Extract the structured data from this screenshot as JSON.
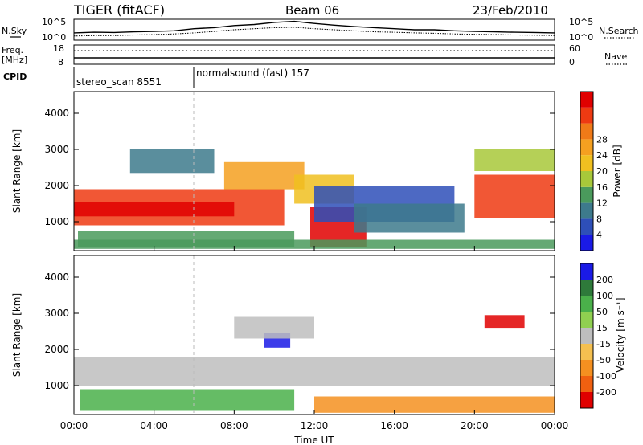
{
  "chart_data": [
    {
      "type": "line",
      "panel": "noise-search",
      "title": "TIGER (fitACF)",
      "subtitle": "Beam 06",
      "date": "23/Feb/2010",
      "left_label": "N.Sky",
      "right_label": "N.Search",
      "yticks_left": [
        "10^5",
        "10^0"
      ],
      "yticks_right": [
        "10^5",
        "10^0"
      ],
      "x": [
        0,
        1,
        2,
        3,
        4,
        5,
        6,
        7,
        8,
        9,
        10,
        11,
        12,
        13,
        14,
        15,
        16,
        17,
        18,
        19,
        20,
        21,
        22,
        23,
        24
      ],
      "series": [
        {
          "name": "N.Sky",
          "style": "solid",
          "values": [
            0.35,
            0.38,
            0.37,
            0.4,
            0.42,
            0.45,
            0.55,
            0.6,
            0.7,
            0.75,
            0.85,
            0.9,
            0.8,
            0.72,
            0.65,
            0.6,
            0.55,
            0.5,
            0.5,
            0.45,
            0.42,
            0.4,
            0.38,
            0.37,
            0.35
          ]
        },
        {
          "name": "N.Search",
          "style": "dotted",
          "values": [
            0.2,
            0.22,
            0.22,
            0.25,
            0.27,
            0.3,
            0.35,
            0.42,
            0.5,
            0.55,
            0.6,
            0.62,
            0.55,
            0.5,
            0.45,
            0.4,
            0.38,
            0.35,
            0.33,
            0.3,
            0.28,
            0.27,
            0.25,
            0.24,
            0.22
          ]
        }
      ]
    },
    {
      "type": "line",
      "panel": "freq-nave",
      "left_label": "Freq. [MHz]",
      "right_label": "Nave",
      "yticks_left": [
        "18",
        "8"
      ],
      "yticks_right": [
        "60",
        "0"
      ],
      "series": [
        {
          "name": "Freq.",
          "style": "solid",
          "values_mhz": [
            10,
            10,
            10,
            10,
            10,
            10,
            10,
            10,
            10,
            10,
            10,
            10,
            10,
            10,
            10,
            10,
            10,
            10,
            10,
            10,
            10,
            10,
            10,
            10,
            10
          ]
        },
        {
          "name": "Nave",
          "style": "dotted",
          "values": [
            40,
            40,
            40,
            40,
            40,
            40,
            40,
            40,
            40,
            40,
            40,
            40,
            40,
            40,
            40,
            40,
            40,
            40,
            40,
            40,
            40,
            40,
            40,
            40,
            40
          ]
        }
      ]
    },
    {
      "type": "table",
      "panel": "cpid",
      "label": "CPID",
      "segments": [
        {
          "start_h": 0,
          "end_h": 6,
          "text": "stereo_scan 8551"
        },
        {
          "start_h": 6,
          "end_h": 24,
          "text": "normalsound (fast) 157"
        }
      ]
    },
    {
      "type": "heatmap",
      "panel": "power",
      "ylabel": "Slant Range [km]",
      "ylim": [
        200,
        4600
      ],
      "yticks": [
        1000,
        2000,
        3000,
        4000
      ],
      "xlim": [
        0,
        24
      ],
      "colorbar": {
        "label": "Power [dB]",
        "ticks": [
          4,
          8,
          12,
          16,
          20,
          24,
          28
        ],
        "range": [
          0,
          32
        ],
        "colors": [
          "#1a1ae6",
          "#2e4fb8",
          "#3d7a8c",
          "#4a9a5c",
          "#a8c83a",
          "#f0c020",
          "#f5a020",
          "#f07a18",
          "#ee3a12",
          "#e00000"
        ]
      },
      "blobs": [
        {
          "t0": 0,
          "t1": 10.5,
          "r0": 900,
          "r1": 1900,
          "v": 26
        },
        {
          "t0": 0,
          "t1": 8,
          "r0": 1150,
          "r1": 1550,
          "v": 30
        },
        {
          "t0": 0.2,
          "t1": 11,
          "r0": 300,
          "r1": 750,
          "v": 10
        },
        {
          "t0": 2.8,
          "t1": 7,
          "r0": 2350,
          "r1": 3000,
          "v": 8
        },
        {
          "t0": 7.5,
          "t1": 11.5,
          "r0": 1900,
          "r1": 2650,
          "v": 20
        },
        {
          "t0": 11.8,
          "t1": 14.6,
          "r0": 300,
          "r1": 1400,
          "v": 31
        },
        {
          "t0": 11,
          "t1": 14,
          "r0": 1500,
          "r1": 2300,
          "v": 17
        },
        {
          "t0": 12,
          "t1": 19,
          "r0": 1000,
          "r1": 2000,
          "v": 6
        },
        {
          "t0": 14,
          "t1": 19.5,
          "r0": 700,
          "r1": 1500,
          "v": 9
        },
        {
          "t0": 20,
          "t1": 24,
          "r0": 1100,
          "r1": 2300,
          "v": 26
        },
        {
          "t0": 20,
          "t1": 24,
          "r0": 2400,
          "r1": 3000,
          "v": 14
        },
        {
          "t0": 0,
          "t1": 24,
          "r0": 250,
          "r1": 500,
          "v": 12
        }
      ]
    },
    {
      "type": "heatmap",
      "panel": "velocity",
      "xlabel": "Time UT",
      "ylabel": "Slant Range [km]",
      "ylim": [
        200,
        4600
      ],
      "yticks": [
        1000,
        2000,
        3000,
        4000
      ],
      "xlim": [
        0,
        24
      ],
      "xticks": [
        "00:00",
        "04:00",
        "08:00",
        "12:00",
        "16:00",
        "20:00",
        "00:00"
      ],
      "colorbar": {
        "label": "Velocity [m s⁻¹]",
        "ticks": [
          "200",
          "100",
          "50",
          "15",
          "-15",
          "-50",
          "-100",
          "-200"
        ],
        "colors": [
          "#1a1ae6",
          "#2e7a3a",
          "#4ab04a",
          "#90d050",
          "#bebebe",
          "#f5c050",
          "#f59020",
          "#f06010",
          "#e00000"
        ]
      },
      "blobs": [
        {
          "t0": 0,
          "t1": 24,
          "r0": 1000,
          "r1": 1800,
          "v": 0
        },
        {
          "t0": 0.3,
          "t1": 11,
          "r0": 300,
          "r1": 900,
          "v": 40
        },
        {
          "t0": 12,
          "t1": 24,
          "r0": 250,
          "r1": 700,
          "v": -60
        },
        {
          "t0": 9.5,
          "t1": 10.8,
          "r0": 2050,
          "r1": 2450,
          "v": 220
        },
        {
          "t0": 20.5,
          "t1": 22.5,
          "r0": 2600,
          "r1": 2950,
          "v": -200
        },
        {
          "t0": 8,
          "t1": 12,
          "r0": 2300,
          "r1": 2900,
          "v": 5
        }
      ]
    }
  ]
}
